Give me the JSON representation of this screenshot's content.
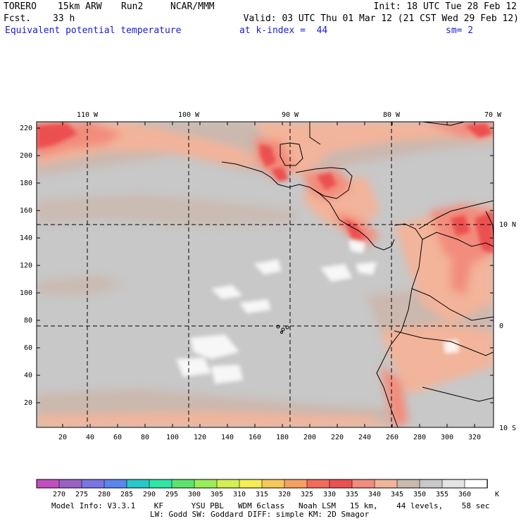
{
  "header": {
    "model": "TORERO",
    "resolution": "15km ARW",
    "run": "Run2",
    "org": "NCAR/MMM",
    "init": "Init: 18 UTC Tue 28 Feb 12",
    "fcst_label": "Fcst.",
    "fcst_value": "33 h",
    "valid": "Valid: 03 UTC Thu 01 Mar 12 (21 CST Wed 29 Feb 12)",
    "field": "Equivalent potential temperature",
    "level": "at k-index =  44",
    "smoothing": "sm= 2"
  },
  "map": {
    "top_lon_labels": [
      "110 W",
      "100 W",
      "90 W",
      "80 W",
      "70 W"
    ],
    "right_lat_labels": [
      "10 N",
      "0",
      "10 S"
    ],
    "left_grid_labels": [
      "220",
      "200",
      "180",
      "160",
      "140",
      "120",
      "100",
      "80",
      "60",
      "40",
      "20"
    ],
    "bottom_grid_labels": [
      "20",
      "40",
      "60",
      "80",
      "100",
      "120",
      "140",
      "160",
      "180",
      "200",
      "220",
      "240",
      "260",
      "280",
      "300",
      "320"
    ]
  },
  "colorbar": {
    "labels": [
      "270",
      "275",
      "280",
      "285",
      "290",
      "295",
      "300",
      "305",
      "310",
      "315",
      "320",
      "325",
      "330",
      "335",
      "340",
      "345",
      "350",
      "355",
      "360"
    ],
    "unit": "K",
    "colors": [
      "#c24fc2",
      "#9a62c8",
      "#7a74e6",
      "#5a86ee",
      "#26c8c8",
      "#2ee6a6",
      "#5ce46c",
      "#9aee58",
      "#d2f050",
      "#f4ee54",
      "#f6c858",
      "#f6a062",
      "#f46a58",
      "#ec5050",
      "#f28c7c",
      "#f2b49a",
      "#cbb8ae",
      "#c8c8c8",
      "#e4e4e4",
      "#ffffff"
    ]
  },
  "footer": {
    "line1": "Model Info: V3.3.1    KF      YSU PBL   WDM 6class   Noah LSM   15 km,    44 levels,    58 sec",
    "line2": "LW: Godd SW: Goddard DIFF: simple KM: 2D Smagor"
  }
}
